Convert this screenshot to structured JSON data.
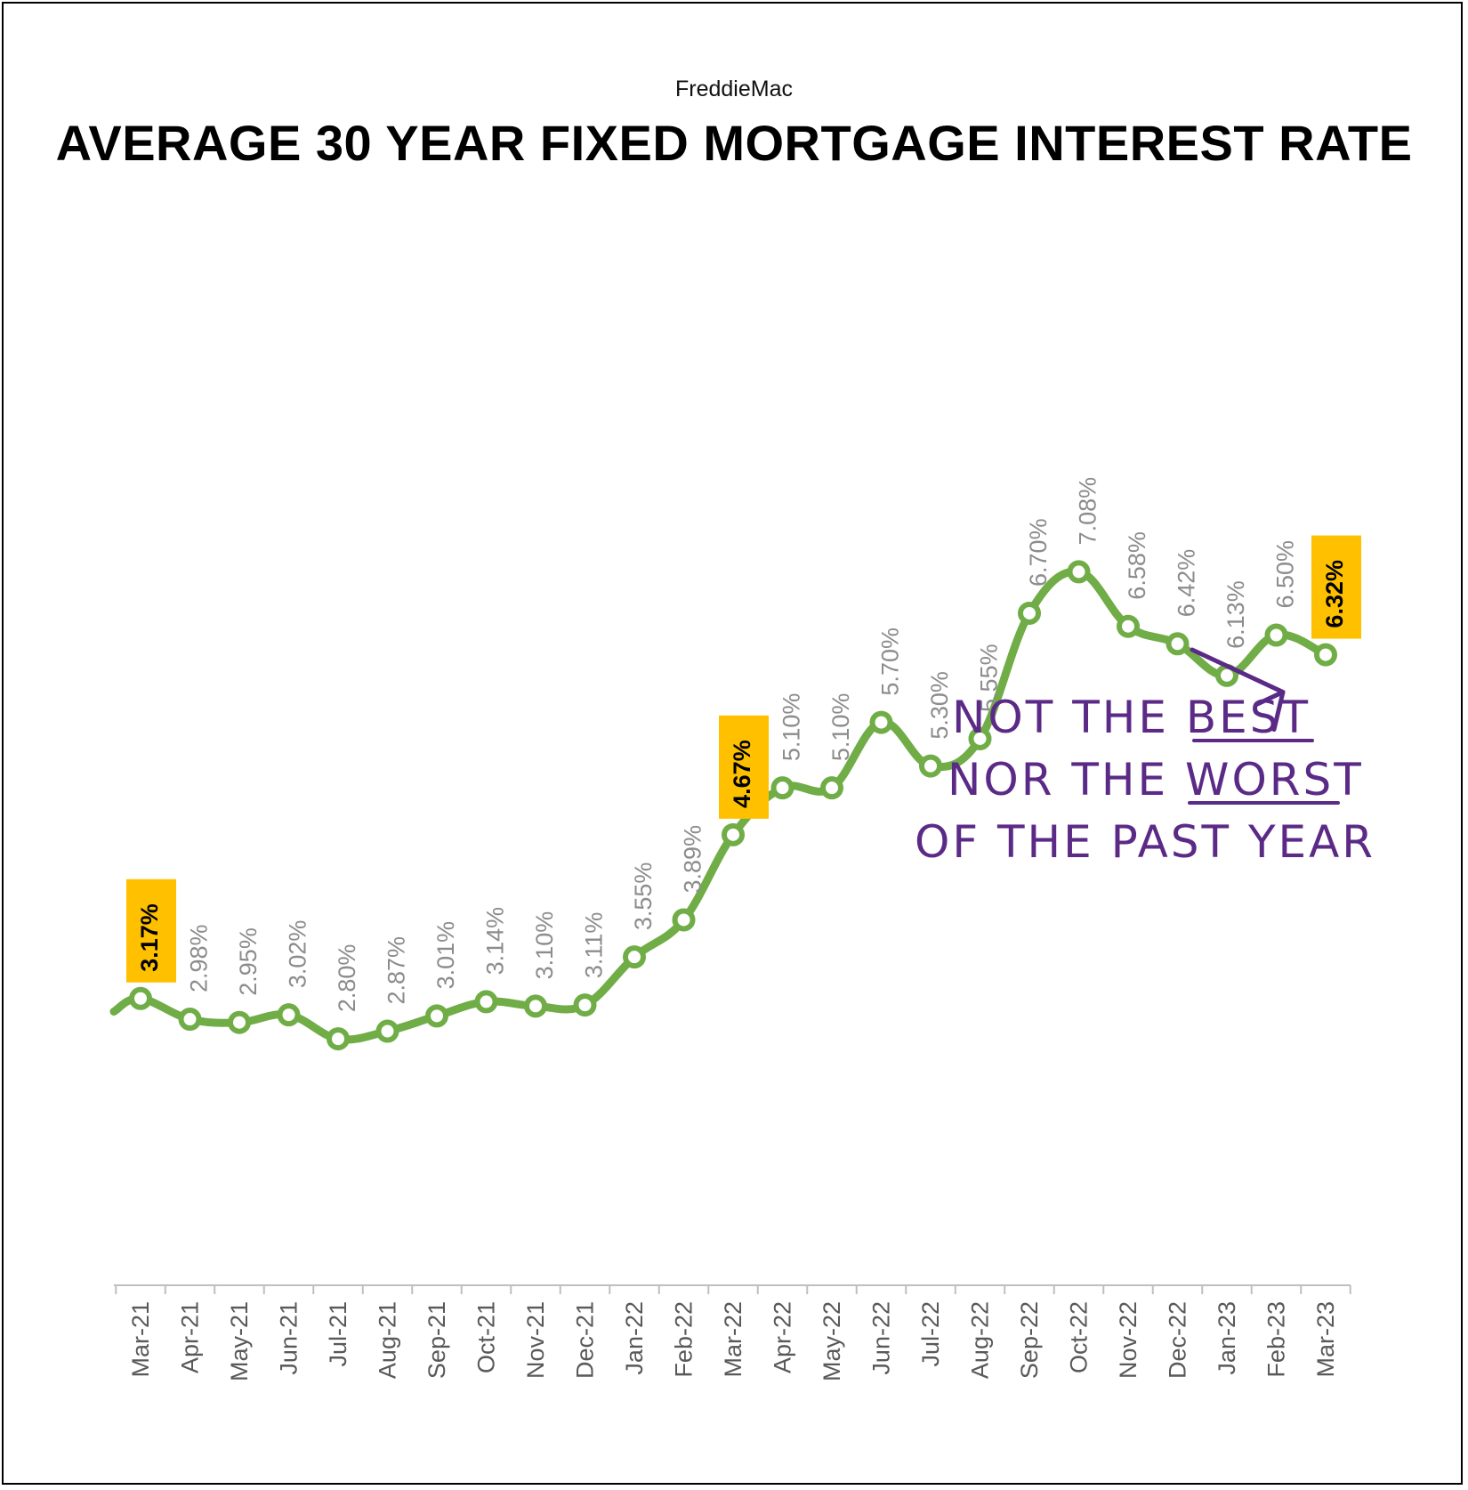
{
  "chart_data": {
    "type": "line",
    "source": "FreddieMac",
    "title": "AVERAGE 30 YEAR FIXED MORTGAGE INTEREST RATE",
    "categories": [
      "Mar-21",
      "Apr-21",
      "May-21",
      "Jun-21",
      "Jul-21",
      "Aug-21",
      "Sep-21",
      "Oct-21",
      "Nov-21",
      "Dec-21",
      "Jan-22",
      "Feb-22",
      "Mar-22",
      "Apr-22",
      "May-22",
      "Jun-22",
      "Jul-22",
      "Aug-22",
      "Sep-22",
      "Oct-22",
      "Nov-22",
      "Dec-22",
      "Jan-23",
      "Feb-23",
      "Mar-23"
    ],
    "series": [
      {
        "values": [
          3.17,
          2.98,
          2.95,
          3.02,
          2.8,
          2.87,
          3.01,
          3.14,
          3.1,
          3.11,
          3.55,
          3.89,
          4.67,
          5.1,
          5.1,
          5.7,
          5.3,
          5.55,
          6.7,
          7.08,
          6.58,
          6.42,
          6.13,
          6.5,
          6.32
        ],
        "labels": [
          "3.17%",
          "2.98%",
          "2.95%",
          "3.02%",
          "2.80%",
          "2.87%",
          "3.01%",
          "3.14%",
          "3.10%",
          "3.11%",
          "3.55%",
          "3.89%",
          "4.67%",
          "5.10%",
          "5.10%",
          "5.70%",
          "5.30%",
          "5.55%",
          "6.70%",
          "7.08%",
          "6.58%",
          "6.42%",
          "6.13%",
          "6.50%",
          "6.32%"
        ],
        "highlighted": [
          0,
          12,
          24
        ]
      }
    ],
    "colors": {
      "line": "#70AD47",
      "marker_fill": "#FFFFFF",
      "label": "#8C8C8C",
      "highlight_bg": "#FFC000",
      "highlight_text": "#000000",
      "annotation": "#5B2A86",
      "axis": "#BFBFBF"
    },
    "grid": false,
    "legend": "none",
    "annotation": {
      "lines": [
        "NOT THE BEST",
        "NOR THE WORST",
        "OF THE PAST YEAR"
      ],
      "underlined_words": [
        "BEST",
        "WORST"
      ],
      "arrow_target": "Mar-23"
    }
  }
}
